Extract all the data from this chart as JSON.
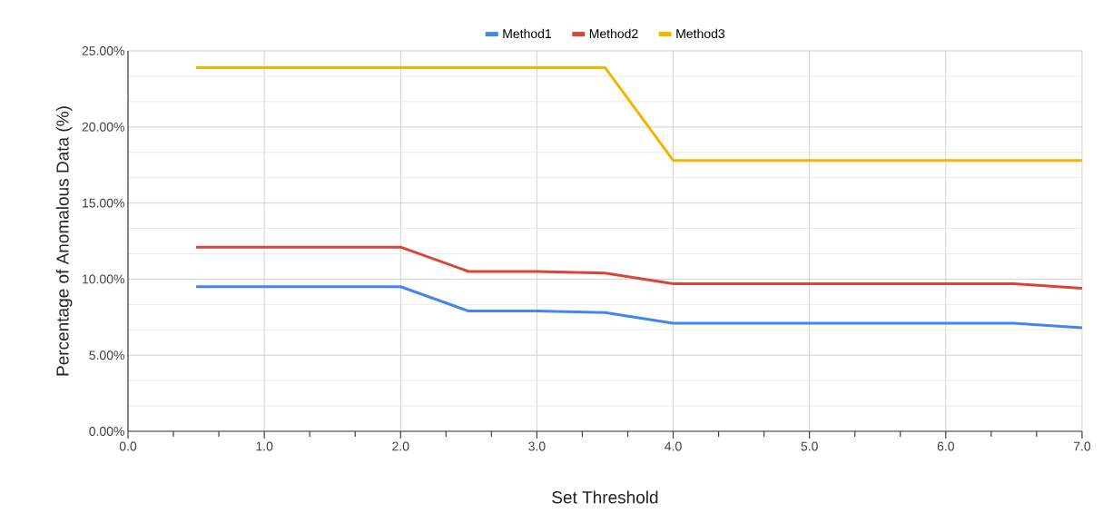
{
  "chart_data": {
    "type": "line",
    "xlabel": "Set Threshold",
    "ylabel": "Percentage of Anomalous Data (%)",
    "x": [
      0.5,
      1.0,
      1.5,
      2.0,
      2.5,
      3.0,
      3.5,
      4.0,
      4.5,
      5.0,
      5.5,
      6.0,
      6.5,
      7.0
    ],
    "series": [
      {
        "name": "Method1",
        "color": "#4285f4",
        "values": [
          9.5,
          9.5,
          9.5,
          9.5,
          7.9,
          7.9,
          7.8,
          7.1,
          7.1,
          7.1,
          7.1,
          7.1,
          7.1,
          6.8
        ]
      },
      {
        "name": "Method2",
        "color": "#db4437",
        "values": [
          12.1,
          12.1,
          12.1,
          12.1,
          10.5,
          10.5,
          10.4,
          9.7,
          9.7,
          9.7,
          9.7,
          9.7,
          9.7,
          9.4
        ]
      },
      {
        "name": "Method3",
        "color": "#f4b400",
        "values": [
          23.9,
          23.9,
          23.9,
          23.9,
          23.9,
          23.9,
          23.9,
          17.8,
          17.8,
          17.8,
          17.8,
          17.8,
          17.8,
          17.8
        ]
      }
    ],
    "xlim": [
      0,
      7
    ],
    "xticks": [
      {
        "value": 0,
        "label": "0.0"
      },
      {
        "value": 1,
        "label": "1.0"
      },
      {
        "value": 2,
        "label": "2.0"
      },
      {
        "value": 3,
        "label": "3.0"
      },
      {
        "value": 4,
        "label": "4.0"
      },
      {
        "value": 5,
        "label": "5.0"
      },
      {
        "value": 6,
        "label": "6.0"
      },
      {
        "value": 7,
        "label": "7.0"
      }
    ],
    "ylim": [
      0,
      25
    ],
    "yticks": [
      {
        "value": 0,
        "label": "0.00%"
      },
      {
        "value": 5,
        "label": "5.00%"
      },
      {
        "value": 10,
        "label": "10.00%"
      },
      {
        "value": 15,
        "label": "15.00%"
      },
      {
        "value": 20,
        "label": "20.00%"
      },
      {
        "value": 25,
        "label": "25.00%"
      }
    ],
    "grid": true,
    "legend": "top",
    "marker": "none",
    "line_style": "solid"
  }
}
